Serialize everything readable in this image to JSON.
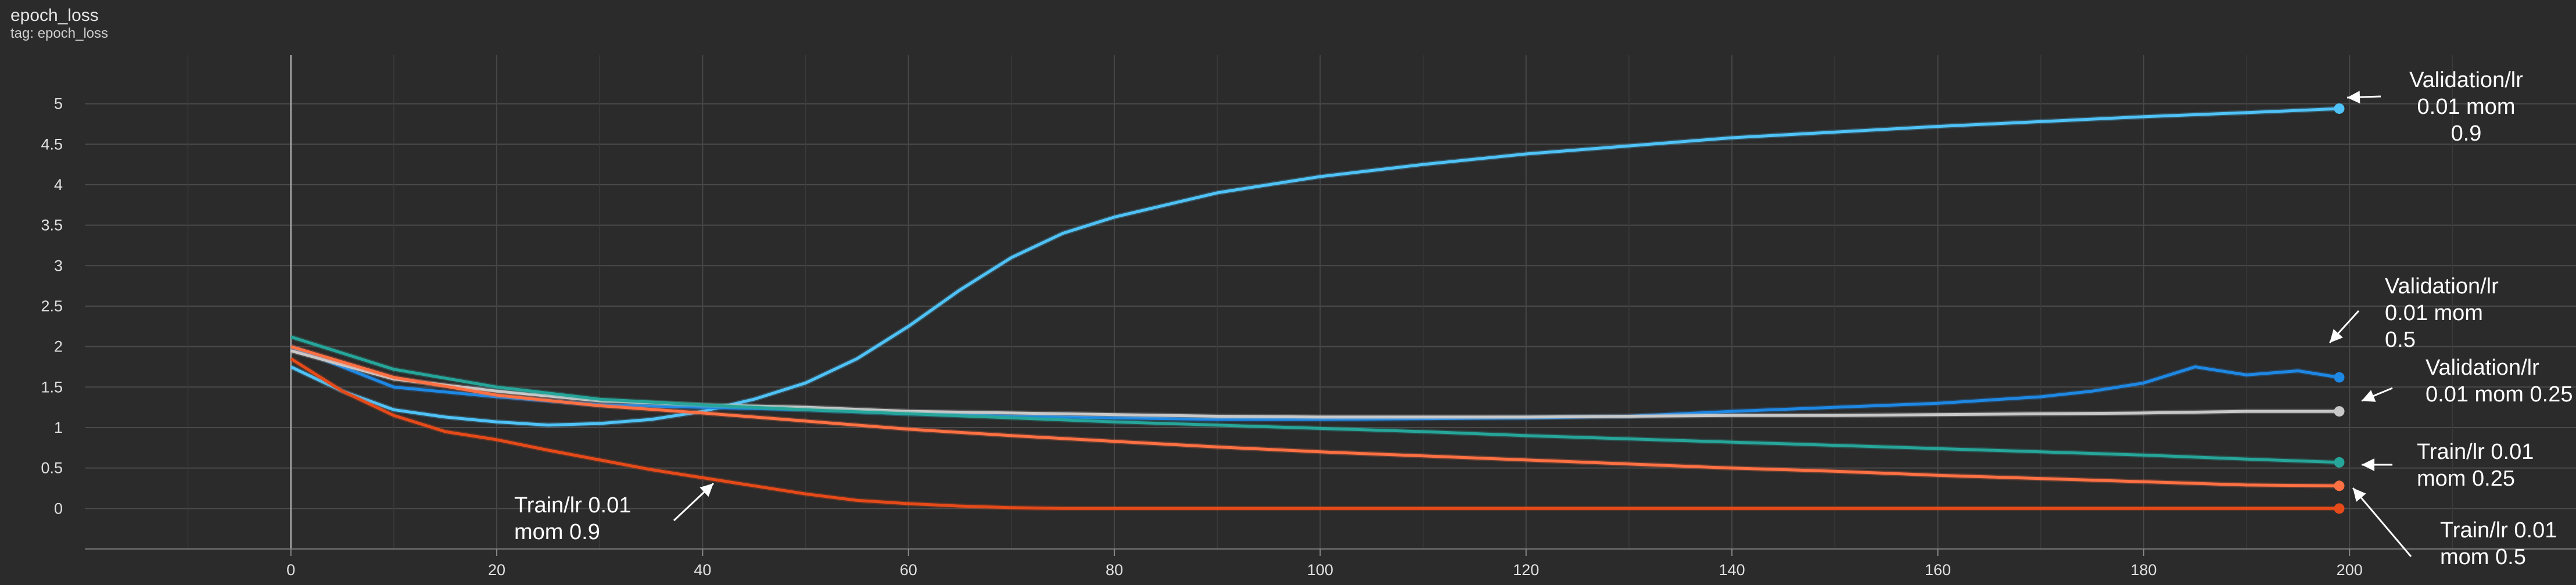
{
  "header": {
    "title": "epoch_loss",
    "subtitle": "tag: epoch_loss"
  },
  "chart_data": {
    "type": "line",
    "title": "epoch_loss",
    "subtitle": "tag: epoch_loss",
    "xlabel": "",
    "ylabel": "",
    "xlim": [
      -26,
      222
    ],
    "ylim": [
      -0.5,
      5.6
    ],
    "x_ticks": [
      0,
      20,
      40,
      60,
      80,
      100,
      120,
      140,
      160,
      180,
      200
    ],
    "y_ticks": [
      0,
      0.5,
      1,
      1.5,
      2,
      2.5,
      3,
      3.5,
      4,
      4.5,
      5
    ],
    "grid": true,
    "background": "#2b2b2b",
    "series": [
      {
        "color": "#4fc3f7",
        "points": [
          [
            0,
            1.75
          ],
          [
            5,
            1.45
          ],
          [
            10,
            1.22
          ],
          [
            15,
            1.13
          ],
          [
            20,
            1.07
          ],
          [
            25,
            1.03
          ],
          [
            30,
            1.05
          ],
          [
            35,
            1.1
          ],
          [
            40,
            1.2
          ],
          [
            45,
            1.35
          ],
          [
            50,
            1.55
          ],
          [
            55,
            1.85
          ],
          [
            60,
            2.25
          ],
          [
            65,
            2.7
          ],
          [
            70,
            3.1
          ],
          [
            75,
            3.4
          ],
          [
            80,
            3.6
          ],
          [
            90,
            3.9
          ],
          [
            100,
            4.1
          ],
          [
            110,
            4.25
          ],
          [
            120,
            4.38
          ],
          [
            130,
            4.48
          ],
          [
            140,
            4.58
          ],
          [
            150,
            4.65
          ],
          [
            160,
            4.72
          ],
          [
            170,
            4.78
          ],
          [
            180,
            4.84
          ],
          [
            190,
            4.89
          ],
          [
            199,
            4.94
          ]
        ]
      },
      {
        "color": "#1e88e5",
        "points": [
          [
            0,
            2.0
          ],
          [
            10,
            1.5
          ],
          [
            20,
            1.38
          ],
          [
            30,
            1.28
          ],
          [
            40,
            1.25
          ],
          [
            50,
            1.22
          ],
          [
            60,
            1.17
          ],
          [
            70,
            1.14
          ],
          [
            80,
            1.12
          ],
          [
            90,
            1.1
          ],
          [
            100,
            1.1
          ],
          [
            110,
            1.11
          ],
          [
            120,
            1.12
          ],
          [
            130,
            1.14
          ],
          [
            140,
            1.2
          ],
          [
            150,
            1.25
          ],
          [
            160,
            1.3
          ],
          [
            170,
            1.38
          ],
          [
            175,
            1.45
          ],
          [
            180,
            1.55
          ],
          [
            185,
            1.75
          ],
          [
            190,
            1.65
          ],
          [
            195,
            1.7
          ],
          [
            199,
            1.62
          ]
        ]
      },
      {
        "color": "#c8c8c8",
        "points": [
          [
            0,
            1.95
          ],
          [
            10,
            1.6
          ],
          [
            20,
            1.45
          ],
          [
            30,
            1.33
          ],
          [
            40,
            1.28
          ],
          [
            50,
            1.25
          ],
          [
            60,
            1.2
          ],
          [
            70,
            1.18
          ],
          [
            80,
            1.16
          ],
          [
            90,
            1.14
          ],
          [
            100,
            1.13
          ],
          [
            110,
            1.13
          ],
          [
            120,
            1.13
          ],
          [
            130,
            1.14
          ],
          [
            140,
            1.15
          ],
          [
            150,
            1.15
          ],
          [
            160,
            1.16
          ],
          [
            170,
            1.17
          ],
          [
            180,
            1.18
          ],
          [
            190,
            1.2
          ],
          [
            199,
            1.2
          ]
        ]
      },
      {
        "color": "#26a69a",
        "points": [
          [
            0,
            2.12
          ],
          [
            10,
            1.72
          ],
          [
            20,
            1.5
          ],
          [
            30,
            1.35
          ],
          [
            40,
            1.28
          ],
          [
            50,
            1.22
          ],
          [
            60,
            1.17
          ],
          [
            70,
            1.12
          ],
          [
            80,
            1.07
          ],
          [
            90,
            1.03
          ],
          [
            100,
            0.99
          ],
          [
            110,
            0.95
          ],
          [
            120,
            0.9
          ],
          [
            130,
            0.86
          ],
          [
            140,
            0.82
          ],
          [
            150,
            0.78
          ],
          [
            160,
            0.74
          ],
          [
            170,
            0.7
          ],
          [
            180,
            0.66
          ],
          [
            190,
            0.61
          ],
          [
            199,
            0.57
          ]
        ]
      },
      {
        "color": "#ff7043",
        "points": [
          [
            0,
            2.0
          ],
          [
            10,
            1.62
          ],
          [
            20,
            1.4
          ],
          [
            30,
            1.27
          ],
          [
            40,
            1.18
          ],
          [
            50,
            1.08
          ],
          [
            60,
            0.98
          ],
          [
            70,
            0.9
          ],
          [
            80,
            0.83
          ],
          [
            90,
            0.76
          ],
          [
            100,
            0.7
          ],
          [
            110,
            0.65
          ],
          [
            120,
            0.6
          ],
          [
            130,
            0.55
          ],
          [
            140,
            0.5
          ],
          [
            150,
            0.46
          ],
          [
            160,
            0.41
          ],
          [
            170,
            0.37
          ],
          [
            180,
            0.33
          ],
          [
            190,
            0.29
          ],
          [
            199,
            0.28
          ]
        ]
      },
      {
        "color": "#e64a19",
        "points": [
          [
            0,
            1.85
          ],
          [
            5,
            1.45
          ],
          [
            10,
            1.15
          ],
          [
            15,
            0.95
          ],
          [
            20,
            0.85
          ],
          [
            25,
            0.72
          ],
          [
            30,
            0.6
          ],
          [
            35,
            0.48
          ],
          [
            40,
            0.38
          ],
          [
            45,
            0.28
          ],
          [
            50,
            0.18
          ],
          [
            55,
            0.1
          ],
          [
            60,
            0.06
          ],
          [
            65,
            0.03
          ],
          [
            70,
            0.01
          ],
          [
            75,
            0.0
          ],
          [
            80,
            0.0
          ],
          [
            100,
            0.0
          ],
          [
            120,
            0.0
          ],
          [
            140,
            0.0
          ],
          [
            160,
            0.0
          ],
          [
            180,
            0.0
          ],
          [
            199,
            0.0
          ]
        ]
      }
    ],
    "annotations": [
      {
        "lines": [
          "Validation/lr",
          "0.01 mom",
          "0.9"
        ],
        "color": "#ffffff"
      },
      {
        "lines": [
          "Validation/lr",
          "0.01 mom",
          "0.5"
        ],
        "color": "#ffffff"
      },
      {
        "lines": [
          "Validation/lr",
          "0.01 mom 0.25"
        ],
        "color": "#ffffff"
      },
      {
        "lines": [
          "Train/lr 0.01",
          "mom 0.25"
        ],
        "color": "#ffffff"
      },
      {
        "lines": [
          "Train/lr 0.01",
          "mom 0.5"
        ],
        "color": "#ffffff"
      },
      {
        "lines": [
          "Train/lr 0.01",
          "mom 0.9"
        ],
        "color": "#ffffff"
      }
    ]
  }
}
